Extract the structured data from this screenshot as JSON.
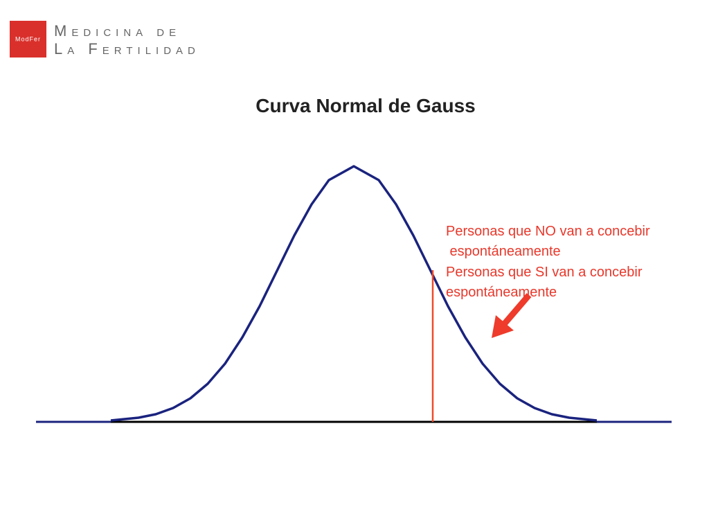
{
  "logo": {
    "mark": "ModFer",
    "line1": "Medicina de",
    "line2": "La Fertilidad"
  },
  "title": "Curva Normal de Gauss",
  "annotations": [
    "Personas que NO van a concebir",
    " espontáneamente",
    "Personas que SI van a concebir",
    "espontáneamente"
  ]
}
